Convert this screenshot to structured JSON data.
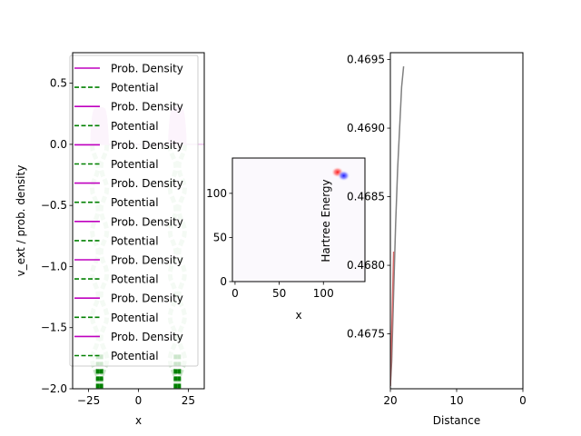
{
  "chart_data": [
    {
      "type": "line",
      "xlabel": "x",
      "ylabel": "v_ext / prob. density",
      "xlim": [
        -33,
        33
      ],
      "ylim": [
        -2.0,
        0.75
      ],
      "xticks": [
        "−25",
        "0",
        "25"
      ],
      "xtick_values": [
        -25,
        0,
        25
      ],
      "yticks": [
        "0.5",
        "0.0",
        "−0.5",
        "−1.0",
        "−1.5",
        "−2.0"
      ],
      "ytick_values": [
        0.5,
        0.0,
        -0.5,
        -1.0,
        -1.5,
        -2.0
      ],
      "legend_position": "upper-left",
      "legend": [
        {
          "label": "Prob. Density",
          "color": "#bf00bf",
          "style": "solid"
        },
        {
          "label": "Potential",
          "color": "#008000",
          "style": "dashed"
        },
        {
          "label": "Prob. Density",
          "color": "#bf00bf",
          "style": "solid"
        },
        {
          "label": "Potential",
          "color": "#008000",
          "style": "dashed"
        },
        {
          "label": "Prob. Density",
          "color": "#bf00bf",
          "style": "solid"
        },
        {
          "label": "Potential",
          "color": "#008000",
          "style": "dashed"
        },
        {
          "label": "Prob. Density",
          "color": "#bf00bf",
          "style": "solid"
        },
        {
          "label": "Potential",
          "color": "#008000",
          "style": "dashed"
        },
        {
          "label": "Prob. Density",
          "color": "#bf00bf",
          "style": "solid"
        },
        {
          "label": "Potential",
          "color": "#008000",
          "style": "dashed"
        },
        {
          "label": "Prob. Density",
          "color": "#bf00bf",
          "style": "solid"
        },
        {
          "label": "Potential",
          "color": "#008000",
          "style": "dashed"
        },
        {
          "label": "Prob. Density",
          "color": "#bf00bf",
          "style": "solid"
        },
        {
          "label": "Potential",
          "color": "#008000",
          "style": "dashed"
        },
        {
          "label": "Prob. Density",
          "color": "#bf00bf",
          "style": "solid"
        },
        {
          "label": "Potential",
          "color": "#008000",
          "style": "dashed"
        }
      ],
      "density_peaks": [
        {
          "center": -19.5,
          "height": 0.3,
          "halfwidth": 4.5
        },
        {
          "center": 19.5,
          "height": 0.3,
          "halfwidth": 4.5
        }
      ],
      "potential_wells": [
        {
          "center": -19.5,
          "bottom": -2.0
        },
        {
          "center": 19.5,
          "bottom": -2.0
        }
      ],
      "colors": {
        "density": "#bf00bf",
        "potential": "#008000",
        "density_fill": "#eec6ee",
        "potential_faint": "#c9e4c9"
      }
    },
    {
      "type": "heatmap",
      "xlabel": "x",
      "ylabel": "",
      "xlim": [
        -3,
        147
      ],
      "ylim": [
        0,
        140
      ],
      "xticks": [
        "0",
        "50",
        "100"
      ],
      "xtick_values": [
        0,
        50,
        100
      ],
      "yticks": [
        "0",
        "50",
        "100"
      ],
      "ytick_values": [
        0,
        50,
        100
      ],
      "blobs": [
        {
          "x": 116,
          "y": 124,
          "sign": "positive",
          "color": "#ff0000"
        },
        {
          "x": 123,
          "y": 120,
          "sign": "negative",
          "color": "#0000ff"
        }
      ]
    },
    {
      "type": "line",
      "xlabel": "Distance",
      "ylabel": "Hartree Energy",
      "xlim": [
        20,
        0
      ],
      "ylim": [
        0.4671,
        0.46955
      ],
      "xticks": [
        "20",
        "10",
        "0"
      ],
      "xtick_values": [
        20,
        10,
        0
      ],
      "yticks": [
        "0.4675",
        "0.4680",
        "0.4685",
        "0.4690",
        "0.4695"
      ],
      "ytick_values": [
        0.4675,
        0.468,
        0.4685,
        0.469,
        0.4695
      ],
      "series": [
        {
          "x": [
            20.0,
            19.8,
            19.5,
            19.2,
            18.9,
            18.6,
            18.3,
            18.0
          ],
          "y": [
            0.46712,
            0.4673,
            0.4678,
            0.4683,
            0.4687,
            0.469,
            0.4693,
            0.46945
          ],
          "color": "#808080"
        },
        {
          "x": [
            20.0,
            19.9,
            19.7,
            19.5
          ],
          "y": [
            0.46712,
            0.4673,
            0.4677,
            0.4681
          ],
          "color": "#d46a6a"
        }
      ]
    }
  ]
}
